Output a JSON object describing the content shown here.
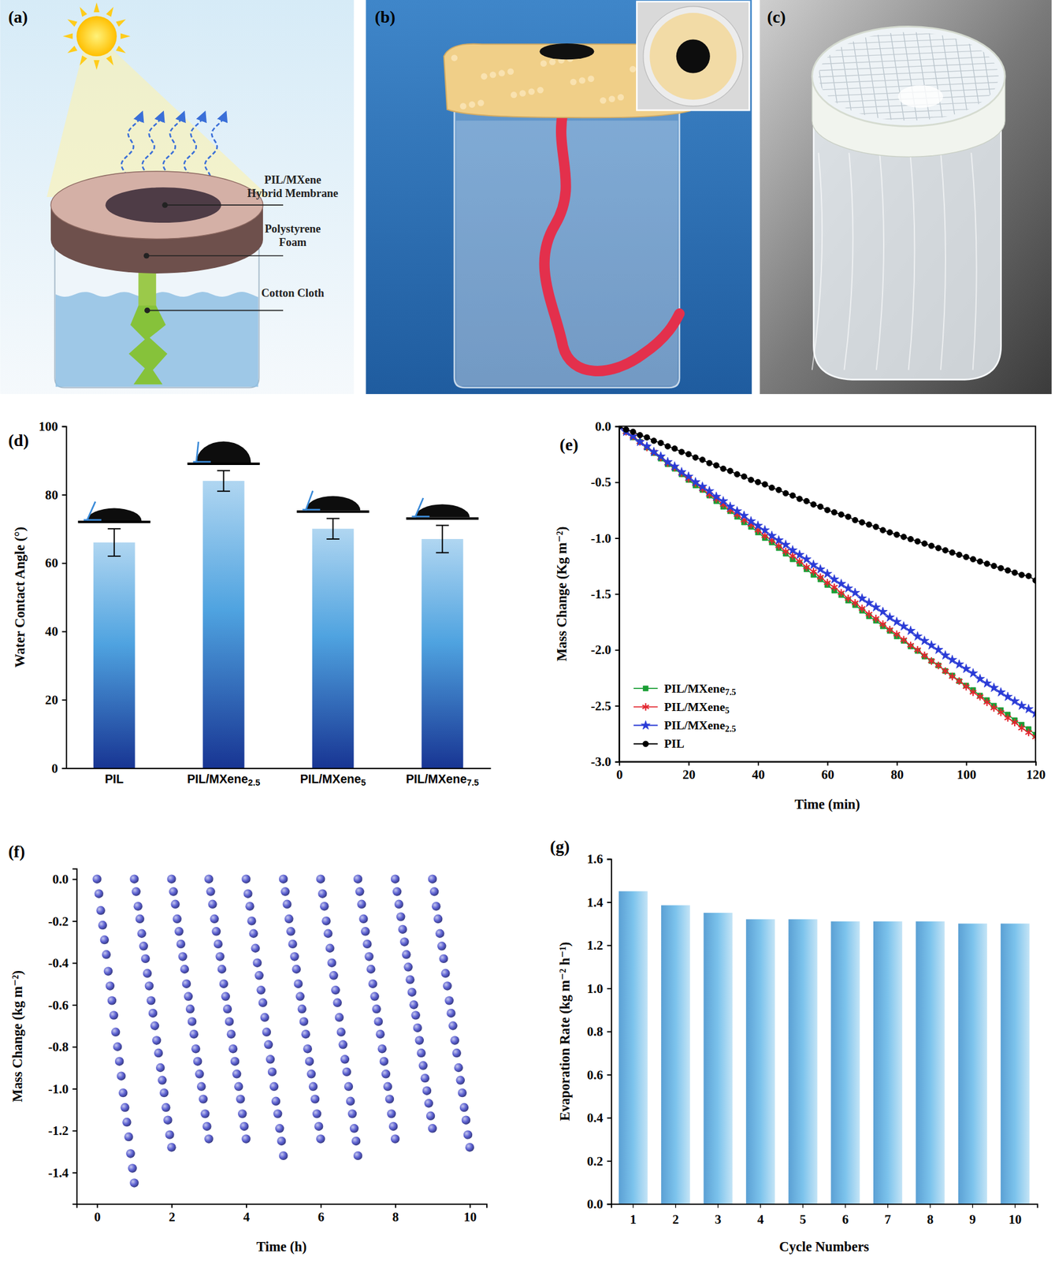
{
  "diagram": {
    "panel_label": "(a)",
    "labels": [
      "PIL/MXene Hybrid Membrane",
      "Polystyrene Foam",
      "Cotton Cloth"
    ]
  },
  "photos": [
    {
      "panel_label": "(b)"
    },
    {
      "panel_label": "(c)"
    }
  ],
  "chart_data": [
    {
      "type": "bar",
      "panel_label": "(d)",
      "y_label": "Water Contact Angle (°)",
      "categories": [
        "PIL",
        "PIL/MXene2.5",
        "PIL/MXene5",
        "PIL/MXene7.5"
      ],
      "values": [
        66,
        84,
        70,
        67
      ],
      "errors": [
        4,
        3,
        3,
        4
      ],
      "color": "#4fa3e0",
      "ylim": [
        0,
        100
      ],
      "yticks": [
        0,
        20,
        40,
        60,
        80,
        100
      ]
    },
    {
      "type": "line",
      "panel_label": "(e)",
      "x_label": "Time (min)",
      "y_label": "Mass Change (Kg m⁻²)",
      "legend": "lower left",
      "x": [
        0,
        2,
        4,
        6,
        8,
        10,
        12,
        14,
        16,
        18,
        20,
        22,
        24,
        26,
        28,
        30,
        32,
        34,
        36,
        38,
        40,
        42,
        44,
        46,
        48,
        50,
        52,
        54,
        56,
        58,
        60,
        62,
        64,
        66,
        68,
        70,
        72,
        74,
        76,
        78,
        80,
        82,
        84,
        86,
        88,
        90,
        92,
        94,
        96,
        98,
        100,
        102,
        104,
        106,
        108,
        110,
        112,
        114,
        116,
        118,
        120
      ],
      "xlim": [
        0,
        120
      ],
      "xticks": [
        0,
        20,
        40,
        60,
        80,
        100,
        120
      ],
      "ylim": [
        -3,
        0
      ],
      "yticks": [
        {
          "value": 0,
          "label": "0.0"
        },
        -0.5,
        {
          "value": -1,
          "label": "-1.0"
        },
        -1.5,
        {
          "value": -2,
          "label": "-2.0"
        },
        -2.5,
        {
          "value": -3,
          "label": "-3.0"
        }
      ],
      "series": [
        {
          "name": "PIL/MXene7.5",
          "color": "#1a9e35",
          "marker": "square",
          "values": [
            0,
            -0.05,
            -0.1,
            -0.14,
            -0.19,
            -0.24,
            -0.29,
            -0.34,
            -0.38,
            -0.43,
            -0.48,
            -0.53,
            -0.57,
            -0.62,
            -0.67,
            -0.72,
            -0.76,
            -0.81,
            -0.86,
            -0.9,
            -0.95,
            -1.0,
            -1.04,
            -1.09,
            -1.14,
            -1.19,
            -1.23,
            -1.28,
            -1.33,
            -1.37,
            -1.42,
            -1.47,
            -1.51,
            -1.56,
            -1.6,
            -1.65,
            -1.7,
            -1.74,
            -1.79,
            -1.83,
            -1.88,
            -1.92,
            -1.97,
            -2.01,
            -2.06,
            -2.1,
            -2.14,
            -2.19,
            -2.23,
            -2.28,
            -2.32,
            -2.36,
            -2.41,
            -2.45,
            -2.5,
            -2.54,
            -2.58,
            -2.63,
            -2.67,
            -2.71,
            -2.76
          ]
        },
        {
          "name": "PIL/MXene5",
          "color": "#e3262f",
          "marker": "asterisk",
          "values": [
            0,
            -0.05,
            -0.09,
            -0.14,
            -0.19,
            -0.23,
            -0.28,
            -0.33,
            -0.37,
            -0.42,
            -0.47,
            -0.51,
            -0.56,
            -0.61,
            -0.65,
            -0.7,
            -0.75,
            -0.79,
            -0.84,
            -0.88,
            -0.93,
            -0.98,
            -1.02,
            -1.07,
            -1.12,
            -1.16,
            -1.21,
            -1.26,
            -1.3,
            -1.35,
            -1.4,
            -1.44,
            -1.49,
            -1.54,
            -1.58,
            -1.63,
            -1.68,
            -1.72,
            -1.77,
            -1.82,
            -1.86,
            -1.91,
            -1.96,
            -2.0,
            -2.05,
            -2.1,
            -2.14,
            -2.19,
            -2.24,
            -2.28,
            -2.33,
            -2.38,
            -2.42,
            -2.47,
            -2.52,
            -2.56,
            -2.61,
            -2.65,
            -2.7,
            -2.74,
            -2.78
          ]
        },
        {
          "name": "PIL/MXene2.5",
          "color": "#2a3bd6",
          "marker": "star",
          "values": [
            0,
            -0.05,
            -0.09,
            -0.14,
            -0.18,
            -0.23,
            -0.27,
            -0.32,
            -0.36,
            -0.41,
            -0.45,
            -0.5,
            -0.54,
            -0.58,
            -0.63,
            -0.67,
            -0.72,
            -0.76,
            -0.8,
            -0.85,
            -0.89,
            -0.93,
            -0.98,
            -1.02,
            -1.06,
            -1.11,
            -1.15,
            -1.19,
            -1.24,
            -1.28,
            -1.32,
            -1.37,
            -1.41,
            -1.45,
            -1.49,
            -1.54,
            -1.58,
            -1.62,
            -1.66,
            -1.71,
            -1.75,
            -1.79,
            -1.83,
            -1.88,
            -1.92,
            -1.96,
            -2.0,
            -2.05,
            -2.09,
            -2.13,
            -2.17,
            -2.21,
            -2.26,
            -2.3,
            -2.34,
            -2.38,
            -2.42,
            -2.46,
            -2.5,
            -2.53,
            -2.57
          ]
        },
        {
          "name": "PIL",
          "color": "#000000",
          "marker": "circle",
          "values": [
            0,
            -0.03,
            -0.05,
            -0.08,
            -0.1,
            -0.13,
            -0.15,
            -0.18,
            -0.2,
            -0.23,
            -0.25,
            -0.28,
            -0.3,
            -0.33,
            -0.35,
            -0.38,
            -0.4,
            -0.43,
            -0.45,
            -0.48,
            -0.5,
            -0.52,
            -0.55,
            -0.57,
            -0.6,
            -0.62,
            -0.65,
            -0.67,
            -0.7,
            -0.72,
            -0.75,
            -0.77,
            -0.79,
            -0.81,
            -0.84,
            -0.86,
            -0.88,
            -0.9,
            -0.93,
            -0.95,
            -0.97,
            -0.99,
            -1.01,
            -1.03,
            -1.05,
            -1.07,
            -1.09,
            -1.11,
            -1.13,
            -1.15,
            -1.17,
            -1.19,
            -1.21,
            -1.23,
            -1.25,
            -1.27,
            -1.29,
            -1.31,
            -1.33,
            -1.34,
            -1.38
          ]
        }
      ]
    },
    {
      "type": "scatter",
      "panel_label": "(f)",
      "x_label": "Time (h)",
      "y_label": "Mass Change (kg m⁻²)",
      "color": "#5a5fd0",
      "marker": "circle",
      "xlim": [
        -0.55,
        10.45
      ],
      "xticks": [
        0,
        2,
        4,
        6,
        8,
        10
      ],
      "ylim": [
        -1.55,
        0.05
      ],
      "yticks": [
        {
          "value": 0,
          "label": "0.0"
        },
        -0.2,
        -0.4,
        -0.6,
        -0.8,
        {
          "value": -1,
          "label": "-1.0"
        },
        -1.2,
        -1.4
      ],
      "series": [
        {
          "x": [
            0,
            0.05,
            0.1,
            0.15,
            0.2,
            0.25,
            0.3,
            0.35,
            0.4,
            0.45,
            0.5,
            0.55,
            0.6,
            0.65,
            0.7,
            0.75,
            0.8,
            0.85,
            0.9,
            0.95,
            1
          ],
          "values": [
            0,
            -0.07,
            -0.15,
            -0.22,
            -0.29,
            -0.36,
            -0.44,
            -0.51,
            -0.58,
            -0.65,
            -0.73,
            -0.8,
            -0.87,
            -0.94,
            -1.02,
            -1.09,
            -1.16,
            -1.23,
            -1.31,
            -1.38,
            -1.45
          ]
        },
        {
          "x": [
            1,
            1.05,
            1.1,
            1.15,
            1.2,
            1.25,
            1.3,
            1.35,
            1.4,
            1.45,
            1.5,
            1.55,
            1.6,
            1.65,
            1.7,
            1.75,
            1.8,
            1.85,
            1.9,
            1.95,
            2
          ],
          "values": [
            0,
            -0.06,
            -0.13,
            -0.19,
            -0.26,
            -0.32,
            -0.38,
            -0.45,
            -0.51,
            -0.58,
            -0.64,
            -0.7,
            -0.77,
            -0.83,
            -0.9,
            -0.96,
            -1.02,
            -1.09,
            -1.15,
            -1.22,
            -1.28
          ]
        },
        {
          "x": [
            2,
            2.05,
            2.1,
            2.15,
            2.2,
            2.25,
            2.3,
            2.35,
            2.4,
            2.45,
            2.5,
            2.55,
            2.6,
            2.65,
            2.7,
            2.75,
            2.8,
            2.85,
            2.9,
            2.95,
            3
          ],
          "values": [
            0,
            -0.06,
            -0.12,
            -0.19,
            -0.25,
            -0.31,
            -0.37,
            -0.43,
            -0.5,
            -0.56,
            -0.62,
            -0.68,
            -0.74,
            -0.81,
            -0.87,
            -0.93,
            -0.99,
            -1.05,
            -1.12,
            -1.18,
            -1.24
          ]
        },
        {
          "x": [
            3,
            3.05,
            3.1,
            3.15,
            3.2,
            3.25,
            3.3,
            3.35,
            3.4,
            3.45,
            3.5,
            3.55,
            3.6,
            3.65,
            3.7,
            3.75,
            3.8,
            3.85,
            3.9,
            3.95,
            4
          ],
          "values": [
            0,
            -0.06,
            -0.12,
            -0.19,
            -0.25,
            -0.31,
            -0.37,
            -0.43,
            -0.5,
            -0.56,
            -0.62,
            -0.68,
            -0.74,
            -0.81,
            -0.87,
            -0.93,
            -0.99,
            -1.05,
            -1.12,
            -1.18,
            -1.24
          ]
        },
        {
          "x": [
            4,
            4.05,
            4.1,
            4.15,
            4.2,
            4.25,
            4.3,
            4.35,
            4.4,
            4.45,
            4.5,
            4.55,
            4.6,
            4.65,
            4.7,
            4.75,
            4.8,
            4.85,
            4.9,
            4.95,
            5
          ],
          "values": [
            0,
            -0.07,
            -0.13,
            -0.2,
            -0.26,
            -0.33,
            -0.4,
            -0.46,
            -0.53,
            -0.59,
            -0.66,
            -0.73,
            -0.79,
            -0.86,
            -0.92,
            -0.99,
            -1.06,
            -1.12,
            -1.19,
            -1.25,
            -1.32
          ]
        },
        {
          "x": [
            5,
            5.05,
            5.1,
            5.15,
            5.2,
            5.25,
            5.3,
            5.35,
            5.4,
            5.45,
            5.5,
            5.55,
            5.6,
            5.65,
            5.7,
            5.75,
            5.8,
            5.85,
            5.9,
            5.95,
            6
          ],
          "values": [
            0,
            -0.06,
            -0.12,
            -0.19,
            -0.25,
            -0.31,
            -0.37,
            -0.43,
            -0.5,
            -0.56,
            -0.62,
            -0.68,
            -0.74,
            -0.81,
            -0.87,
            -0.93,
            -0.99,
            -1.05,
            -1.12,
            -1.18,
            -1.24
          ]
        },
        {
          "x": [
            6,
            6.05,
            6.1,
            6.15,
            6.2,
            6.25,
            6.3,
            6.35,
            6.4,
            6.45,
            6.5,
            6.55,
            6.6,
            6.65,
            6.7,
            6.75,
            6.8,
            6.85,
            6.9,
            6.95,
            7
          ],
          "values": [
            0,
            -0.07,
            -0.13,
            -0.2,
            -0.26,
            -0.33,
            -0.4,
            -0.46,
            -0.53,
            -0.59,
            -0.66,
            -0.73,
            -0.79,
            -0.86,
            -0.92,
            -0.99,
            -1.06,
            -1.12,
            -1.19,
            -1.25,
            -1.32
          ]
        },
        {
          "x": [
            7,
            7.05,
            7.1,
            7.15,
            7.2,
            7.25,
            7.3,
            7.35,
            7.4,
            7.45,
            7.5,
            7.55,
            7.6,
            7.65,
            7.7,
            7.75,
            7.8,
            7.85,
            7.9,
            7.95,
            8
          ],
          "values": [
            0,
            -0.06,
            -0.12,
            -0.19,
            -0.25,
            -0.31,
            -0.37,
            -0.43,
            -0.5,
            -0.56,
            -0.62,
            -0.68,
            -0.74,
            -0.81,
            -0.87,
            -0.93,
            -0.99,
            -1.05,
            -1.12,
            -1.18,
            -1.24
          ]
        },
        {
          "x": [
            8,
            8.05,
            8.1,
            8.15,
            8.2,
            8.25,
            8.3,
            8.35,
            8.4,
            8.45,
            8.5,
            8.55,
            8.6,
            8.65,
            8.7,
            8.75,
            8.8,
            8.85,
            8.9,
            8.95,
            9
          ],
          "values": [
            0,
            -0.06,
            -0.12,
            -0.18,
            -0.24,
            -0.3,
            -0.36,
            -0.42,
            -0.48,
            -0.54,
            -0.6,
            -0.65,
            -0.71,
            -0.77,
            -0.83,
            -0.89,
            -0.95,
            -1.01,
            -1.07,
            -1.13,
            -1.19
          ]
        },
        {
          "x": [
            9,
            9.05,
            9.1,
            9.15,
            9.2,
            9.25,
            9.3,
            9.35,
            9.4,
            9.45,
            9.5,
            9.55,
            9.6,
            9.65,
            9.7,
            9.75,
            9.8,
            9.85,
            9.9,
            9.95,
            10
          ],
          "values": [
            0,
            -0.06,
            -0.13,
            -0.19,
            -0.26,
            -0.32,
            -0.38,
            -0.45,
            -0.51,
            -0.58,
            -0.64,
            -0.7,
            -0.77,
            -0.83,
            -0.9,
            -0.96,
            -1.02,
            -1.09,
            -1.15,
            -1.22,
            -1.28
          ]
        }
      ]
    },
    {
      "type": "bar",
      "panel_label": "(g)",
      "x_label": "Cycle Numbers",
      "y_label": "Evaporation Rate (kg m⁻² h⁻¹)",
      "categories": [
        "1",
        "2",
        "3",
        "4",
        "5",
        "6",
        "7",
        "8",
        "9",
        "10"
      ],
      "values": [
        1.45,
        1.385,
        1.35,
        1.32,
        1.32,
        1.31,
        1.31,
        1.31,
        1.3,
        1.3
      ],
      "color": "#7cc3ec",
      "ylim": [
        0,
        1.6
      ],
      "yticks": [
        {
          "value": 0,
          "label": "0.0"
        },
        0.2,
        0.4,
        0.6,
        0.8,
        {
          "value": 1,
          "label": "1.0"
        },
        1.2,
        1.4,
        1.6
      ]
    }
  ]
}
